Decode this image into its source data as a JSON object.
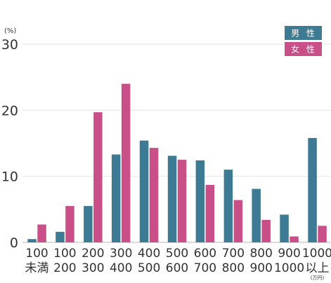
{
  "chart_data": {
    "type": "bar",
    "unit_label": "(%)",
    "y_ticks": [
      "0",
      "10",
      "20",
      "30"
    ],
    "ylim": [
      0,
      30
    ],
    "grid": true,
    "legend_placement": "top-right",
    "categories": [
      [
        "100",
        "未満"
      ],
      [
        "100",
        "200"
      ],
      [
        "200",
        "300"
      ],
      [
        "300",
        "400"
      ],
      [
        "400",
        "500"
      ],
      [
        "500",
        "600"
      ],
      [
        "600",
        "700"
      ],
      [
        "700",
        "800"
      ],
      [
        "800",
        "900"
      ],
      [
        "900",
        "1000"
      ],
      [
        "1000",
        "以上"
      ]
    ],
    "last_category_note": "(万円)",
    "series": [
      {
        "name": "男 性",
        "color": "#3d7a93",
        "values": [
          0.5,
          1.6,
          5.5,
          13.3,
          15.4,
          13.1,
          12.4,
          11.0,
          8.1,
          4.2,
          15.8
        ]
      },
      {
        "name": "女 性",
        "color": "#c94f88",
        "values": [
          2.7,
          5.5,
          19.7,
          24.0,
          14.3,
          12.5,
          8.7,
          6.4,
          3.4,
          0.9,
          2.5
        ]
      }
    ]
  }
}
